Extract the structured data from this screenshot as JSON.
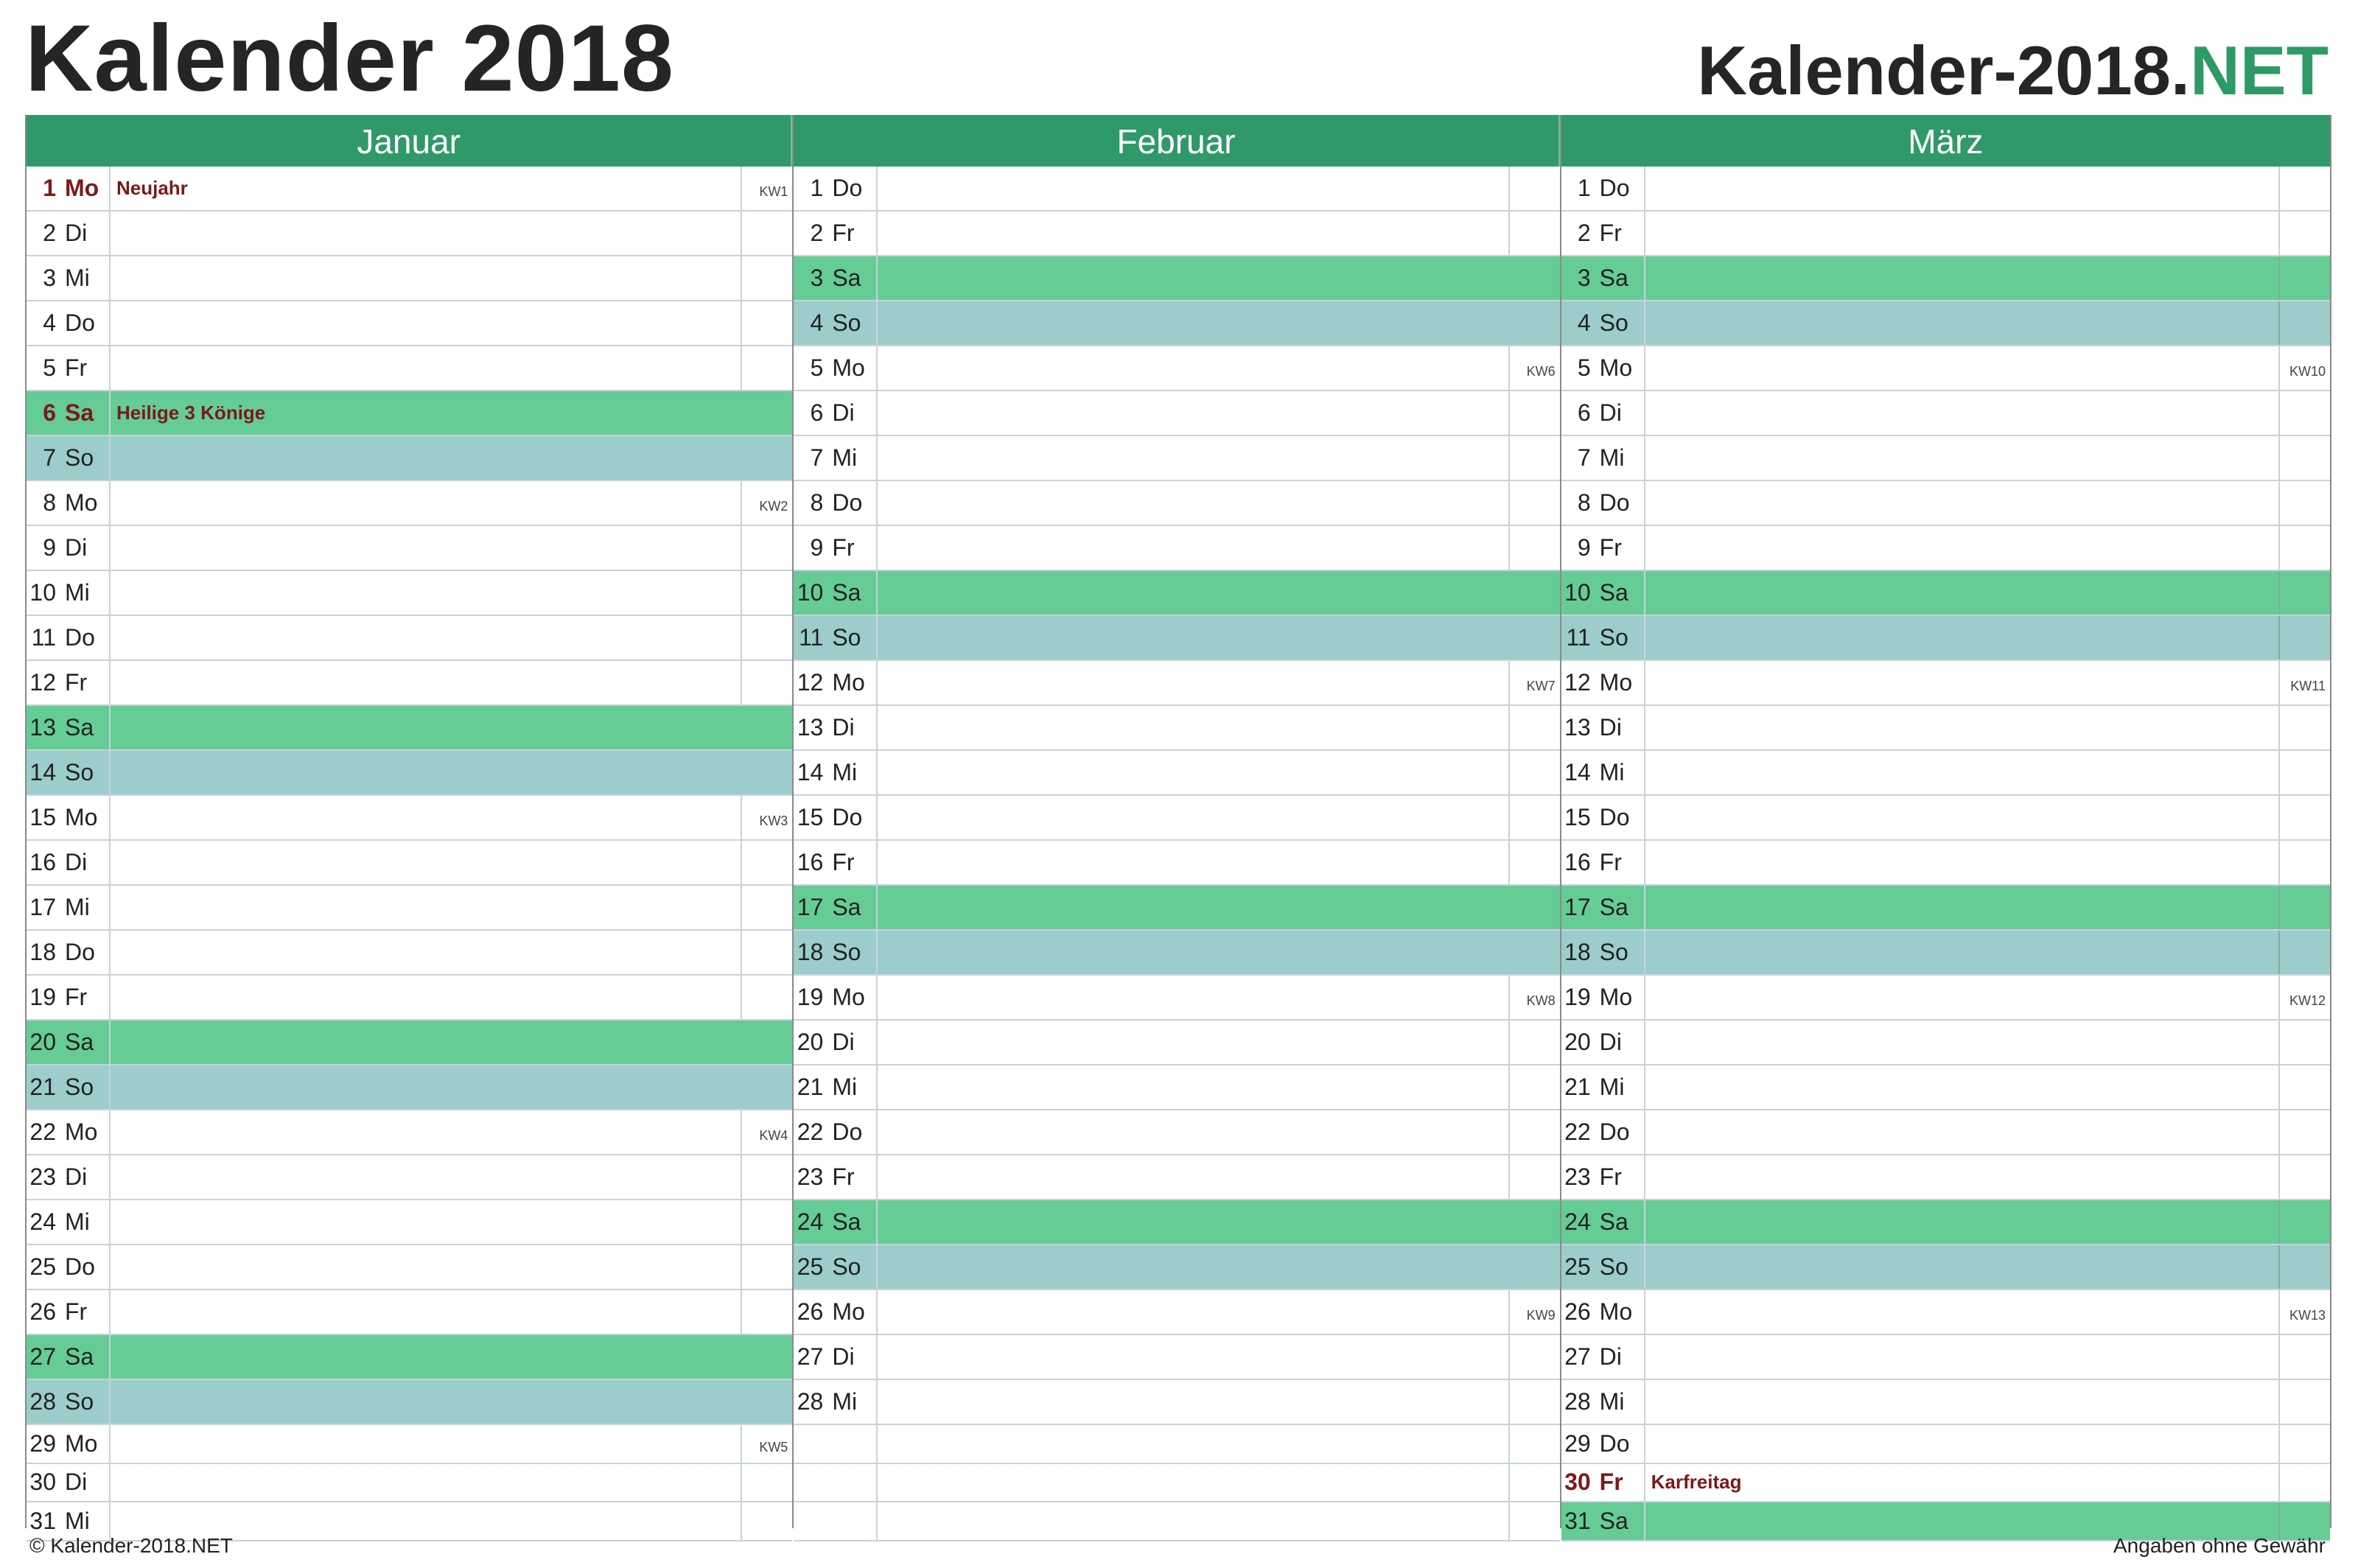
{
  "title": "Kalender 2018",
  "brand": {
    "main": "Kalender-2018.",
    "accent": "NET"
  },
  "colors": {
    "header": "#2f9a68",
    "saturday": "#66cc96",
    "sunday": "#9ccccc",
    "holiday_text": "#7b1a1a"
  },
  "months": [
    {
      "name": "Januar",
      "days": [
        {
          "d": "1",
          "wd": "Mo",
          "note": "Neujahr",
          "kw": "KW1",
          "type": "hol"
        },
        {
          "d": "2",
          "wd": "Di",
          "note": "",
          "kw": "",
          "type": ""
        },
        {
          "d": "3",
          "wd": "Mi",
          "note": "",
          "kw": "",
          "type": ""
        },
        {
          "d": "4",
          "wd": "Do",
          "note": "",
          "kw": "",
          "type": ""
        },
        {
          "d": "5",
          "wd": "Fr",
          "note": "",
          "kw": "",
          "type": ""
        },
        {
          "d": "6",
          "wd": "Sa",
          "note": "Heilige 3 Könige",
          "kw": "",
          "type": "sat hol"
        },
        {
          "d": "7",
          "wd": "So",
          "note": "",
          "kw": "",
          "type": "sun"
        },
        {
          "d": "8",
          "wd": "Mo",
          "note": "",
          "kw": "KW2",
          "type": ""
        },
        {
          "d": "9",
          "wd": "Di",
          "note": "",
          "kw": "",
          "type": ""
        },
        {
          "d": "10",
          "wd": "Mi",
          "note": "",
          "kw": "",
          "type": ""
        },
        {
          "d": "11",
          "wd": "Do",
          "note": "",
          "kw": "",
          "type": ""
        },
        {
          "d": "12",
          "wd": "Fr",
          "note": "",
          "kw": "",
          "type": ""
        },
        {
          "d": "13",
          "wd": "Sa",
          "note": "",
          "kw": "",
          "type": "sat"
        },
        {
          "d": "14",
          "wd": "So",
          "note": "",
          "kw": "",
          "type": "sun"
        },
        {
          "d": "15",
          "wd": "Mo",
          "note": "",
          "kw": "KW3",
          "type": ""
        },
        {
          "d": "16",
          "wd": "Di",
          "note": "",
          "kw": "",
          "type": ""
        },
        {
          "d": "17",
          "wd": "Mi",
          "note": "",
          "kw": "",
          "type": ""
        },
        {
          "d": "18",
          "wd": "Do",
          "note": "",
          "kw": "",
          "type": ""
        },
        {
          "d": "19",
          "wd": "Fr",
          "note": "",
          "kw": "",
          "type": ""
        },
        {
          "d": "20",
          "wd": "Sa",
          "note": "",
          "kw": "",
          "type": "sat"
        },
        {
          "d": "21",
          "wd": "So",
          "note": "",
          "kw": "",
          "type": "sun"
        },
        {
          "d": "22",
          "wd": "Mo",
          "note": "",
          "kw": "KW4",
          "type": ""
        },
        {
          "d": "23",
          "wd": "Di",
          "note": "",
          "kw": "",
          "type": ""
        },
        {
          "d": "24",
          "wd": "Mi",
          "note": "",
          "kw": "",
          "type": ""
        },
        {
          "d": "25",
          "wd": "Do",
          "note": "",
          "kw": "",
          "type": ""
        },
        {
          "d": "26",
          "wd": "Fr",
          "note": "",
          "kw": "",
          "type": ""
        },
        {
          "d": "27",
          "wd": "Sa",
          "note": "",
          "kw": "",
          "type": "sat"
        },
        {
          "d": "28",
          "wd": "So",
          "note": "",
          "kw": "",
          "type": "sun"
        },
        {
          "d": "29",
          "wd": "Mo",
          "note": "",
          "kw": "KW5",
          "type": ""
        },
        {
          "d": "30",
          "wd": "Di",
          "note": "",
          "kw": "",
          "type": ""
        },
        {
          "d": "31",
          "wd": "Mi",
          "note": "",
          "kw": "",
          "type": ""
        }
      ]
    },
    {
      "name": "Februar",
      "days": [
        {
          "d": "1",
          "wd": "Do",
          "note": "",
          "kw": "",
          "type": ""
        },
        {
          "d": "2",
          "wd": "Fr",
          "note": "",
          "kw": "",
          "type": ""
        },
        {
          "d": "3",
          "wd": "Sa",
          "note": "",
          "kw": "",
          "type": "sat"
        },
        {
          "d": "4",
          "wd": "So",
          "note": "",
          "kw": "",
          "type": "sun"
        },
        {
          "d": "5",
          "wd": "Mo",
          "note": "",
          "kw": "KW6",
          "type": ""
        },
        {
          "d": "6",
          "wd": "Di",
          "note": "",
          "kw": "",
          "type": ""
        },
        {
          "d": "7",
          "wd": "Mi",
          "note": "",
          "kw": "",
          "type": ""
        },
        {
          "d": "8",
          "wd": "Do",
          "note": "",
          "kw": "",
          "type": ""
        },
        {
          "d": "9",
          "wd": "Fr",
          "note": "",
          "kw": "",
          "type": ""
        },
        {
          "d": "10",
          "wd": "Sa",
          "note": "",
          "kw": "",
          "type": "sat"
        },
        {
          "d": "11",
          "wd": "So",
          "note": "",
          "kw": "",
          "type": "sun"
        },
        {
          "d": "12",
          "wd": "Mo",
          "note": "",
          "kw": "KW7",
          "type": ""
        },
        {
          "d": "13",
          "wd": "Di",
          "note": "",
          "kw": "",
          "type": ""
        },
        {
          "d": "14",
          "wd": "Mi",
          "note": "",
          "kw": "",
          "type": ""
        },
        {
          "d": "15",
          "wd": "Do",
          "note": "",
          "kw": "",
          "type": ""
        },
        {
          "d": "16",
          "wd": "Fr",
          "note": "",
          "kw": "",
          "type": ""
        },
        {
          "d": "17",
          "wd": "Sa",
          "note": "",
          "kw": "",
          "type": "sat"
        },
        {
          "d": "18",
          "wd": "So",
          "note": "",
          "kw": "",
          "type": "sun"
        },
        {
          "d": "19",
          "wd": "Mo",
          "note": "",
          "kw": "KW8",
          "type": ""
        },
        {
          "d": "20",
          "wd": "Di",
          "note": "",
          "kw": "",
          "type": ""
        },
        {
          "d": "21",
          "wd": "Mi",
          "note": "",
          "kw": "",
          "type": ""
        },
        {
          "d": "22",
          "wd": "Do",
          "note": "",
          "kw": "",
          "type": ""
        },
        {
          "d": "23",
          "wd": "Fr",
          "note": "",
          "kw": "",
          "type": ""
        },
        {
          "d": "24",
          "wd": "Sa",
          "note": "",
          "kw": "",
          "type": "sat"
        },
        {
          "d": "25",
          "wd": "So",
          "note": "",
          "kw": "",
          "type": "sun"
        },
        {
          "d": "26",
          "wd": "Mo",
          "note": "",
          "kw": "KW9",
          "type": ""
        },
        {
          "d": "27",
          "wd": "Di",
          "note": "",
          "kw": "",
          "type": ""
        },
        {
          "d": "28",
          "wd": "Mi",
          "note": "",
          "kw": "",
          "type": ""
        },
        {
          "d": "",
          "wd": "",
          "note": "",
          "kw": "",
          "type": ""
        },
        {
          "d": "",
          "wd": "",
          "note": "",
          "kw": "",
          "type": ""
        },
        {
          "d": "",
          "wd": "",
          "note": "",
          "kw": "",
          "type": ""
        }
      ]
    },
    {
      "name": "März",
      "days": [
        {
          "d": "1",
          "wd": "Do",
          "note": "",
          "kw": "",
          "type": ""
        },
        {
          "d": "2",
          "wd": "Fr",
          "note": "",
          "kw": "",
          "type": ""
        },
        {
          "d": "3",
          "wd": "Sa",
          "note": "",
          "kw": "",
          "type": "sat"
        },
        {
          "d": "4",
          "wd": "So",
          "note": "",
          "kw": "",
          "type": "sun"
        },
        {
          "d": "5",
          "wd": "Mo",
          "note": "",
          "kw": "KW10",
          "type": ""
        },
        {
          "d": "6",
          "wd": "Di",
          "note": "",
          "kw": "",
          "type": ""
        },
        {
          "d": "7",
          "wd": "Mi",
          "note": "",
          "kw": "",
          "type": ""
        },
        {
          "d": "8",
          "wd": "Do",
          "note": "",
          "kw": "",
          "type": ""
        },
        {
          "d": "9",
          "wd": "Fr",
          "note": "",
          "kw": "",
          "type": ""
        },
        {
          "d": "10",
          "wd": "Sa",
          "note": "",
          "kw": "",
          "type": "sat"
        },
        {
          "d": "11",
          "wd": "So",
          "note": "",
          "kw": "",
          "type": "sun"
        },
        {
          "d": "12",
          "wd": "Mo",
          "note": "",
          "kw": "KW11",
          "type": ""
        },
        {
          "d": "13",
          "wd": "Di",
          "note": "",
          "kw": "",
          "type": ""
        },
        {
          "d": "14",
          "wd": "Mi",
          "note": "",
          "kw": "",
          "type": ""
        },
        {
          "d": "15",
          "wd": "Do",
          "note": "",
          "kw": "",
          "type": ""
        },
        {
          "d": "16",
          "wd": "Fr",
          "note": "",
          "kw": "",
          "type": ""
        },
        {
          "d": "17",
          "wd": "Sa",
          "note": "",
          "kw": "",
          "type": "sat"
        },
        {
          "d": "18",
          "wd": "So",
          "note": "",
          "kw": "",
          "type": "sun"
        },
        {
          "d": "19",
          "wd": "Mo",
          "note": "",
          "kw": "KW12",
          "type": ""
        },
        {
          "d": "20",
          "wd": "Di",
          "note": "",
          "kw": "",
          "type": ""
        },
        {
          "d": "21",
          "wd": "Mi",
          "note": "",
          "kw": "",
          "type": ""
        },
        {
          "d": "22",
          "wd": "Do",
          "note": "",
          "kw": "",
          "type": ""
        },
        {
          "d": "23",
          "wd": "Fr",
          "note": "",
          "kw": "",
          "type": ""
        },
        {
          "d": "24",
          "wd": "Sa",
          "note": "",
          "kw": "",
          "type": "sat"
        },
        {
          "d": "25",
          "wd": "So",
          "note": "",
          "kw": "",
          "type": "sun"
        },
        {
          "d": "26",
          "wd": "Mo",
          "note": "",
          "kw": "KW13",
          "type": ""
        },
        {
          "d": "27",
          "wd": "Di",
          "note": "",
          "kw": "",
          "type": ""
        },
        {
          "d": "28",
          "wd": "Mi",
          "note": "",
          "kw": "",
          "type": ""
        },
        {
          "d": "29",
          "wd": "Do",
          "note": "",
          "kw": "",
          "type": ""
        },
        {
          "d": "30",
          "wd": "Fr",
          "note": "Karfreitag",
          "kw": "",
          "type": "hol"
        },
        {
          "d": "31",
          "wd": "Sa",
          "note": "",
          "kw": "",
          "type": "sat"
        }
      ]
    }
  ],
  "footer": {
    "left": "© Kalender-2018.NET",
    "right": "Angaben ohne Gewähr"
  }
}
